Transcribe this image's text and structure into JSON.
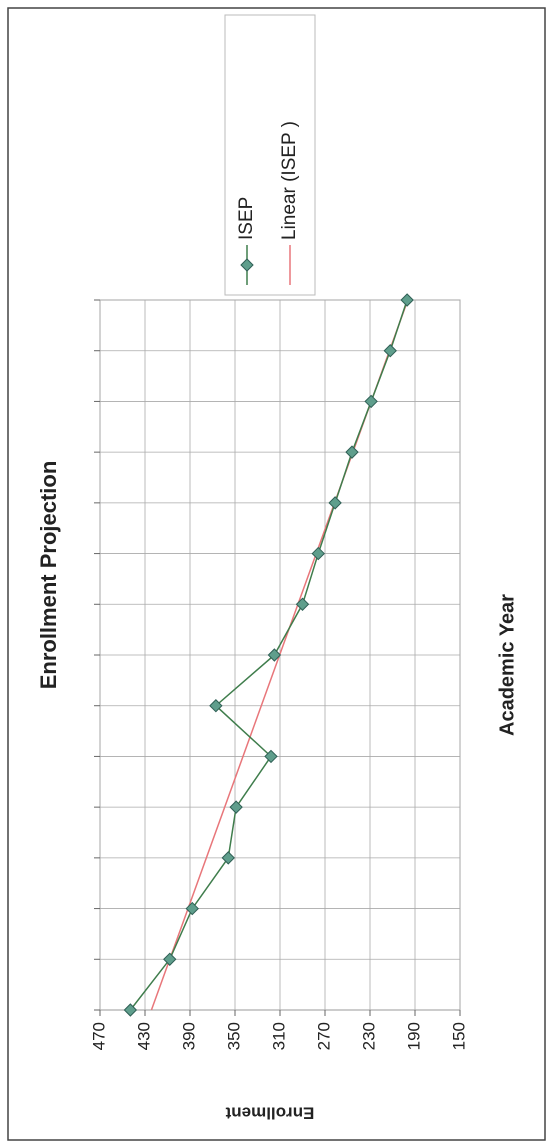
{
  "chart_data": {
    "type": "line",
    "title": "Enrollment Projection",
    "xlabel": "Academic Year",
    "ylabel": "Enrollment",
    "categories": [
      null,
      null,
      null,
      null,
      null,
      null,
      null,
      null,
      null,
      null,
      null,
      null,
      null,
      null,
      null
    ],
    "series": [
      {
        "name": "ISEP",
        "color": "#3f7d4c",
        "marker_color": "#5f9e8c",
        "values": [
          443,
          408,
          388,
          356,
          349,
          318,
          367,
          315,
          290,
          276,
          261,
          246,
          229,
          212,
          197
        ]
      }
    ],
    "trendline": {
      "name": "Linear (ISEP )",
      "color": "#e8767a"
    },
    "ylim": [
      470,
      150
    ],
    "yticks": [
      470,
      430,
      390,
      350,
      310,
      270,
      230,
      190,
      150
    ],
    "grid": true
  }
}
